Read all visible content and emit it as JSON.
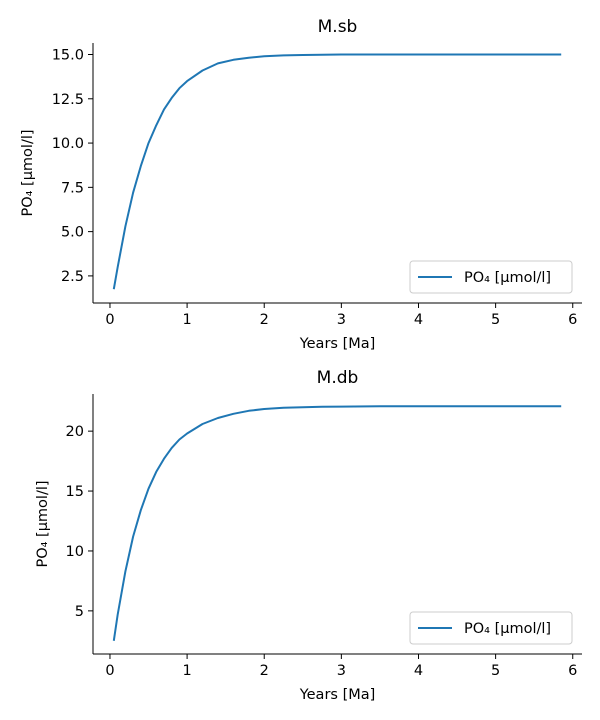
{
  "figure": {
    "line_color": "#1f77b4"
  },
  "chart_data": [
    {
      "type": "line",
      "title": "M.sb",
      "xlabel": "Years [Ma]",
      "ylabel": "PO₄ [µmol/l]",
      "legend": {
        "text": "PO₄ [µmol/l]",
        "placement": "lower-right"
      },
      "xlim": [
        -0.22,
        6.12
      ],
      "ylim": [
        0.97,
        15.65
      ],
      "xticks": [
        0,
        1,
        2,
        3,
        4,
        5,
        6
      ],
      "xtick_labels": [
        "0",
        "1",
        "2",
        "3",
        "4",
        "5",
        "6"
      ],
      "yticks": [
        2.5,
        5.0,
        7.5,
        10.0,
        12.5,
        15.0
      ],
      "ytick_labels": [
        "2.5",
        "5.0",
        "7.5",
        "10.0",
        "12.5",
        "15.0"
      ],
      "grid": false,
      "series": [
        {
          "x": [
            0.05,
            0.1,
            0.2,
            0.3,
            0.4,
            0.5,
            0.6,
            0.7,
            0.8,
            0.9,
            1.0,
            1.2,
            1.4,
            1.6,
            1.8,
            2.0,
            2.25,
            2.5,
            2.75,
            3.0,
            3.5,
            4.0,
            4.5,
            5.0,
            5.5,
            5.85
          ],
          "y": [
            1.75,
            3.0,
            5.3,
            7.2,
            8.7,
            10.0,
            11.0,
            11.9,
            12.55,
            13.1,
            13.5,
            14.1,
            14.5,
            14.7,
            14.82,
            14.9,
            14.95,
            14.97,
            14.99,
            15.0,
            15.0,
            15.0,
            15.0,
            15.0,
            15.0,
            15.0
          ]
        }
      ]
    },
    {
      "type": "line",
      "title": "M.db",
      "xlabel": "Years [Ma]",
      "ylabel": "PO₄ [µmol/l]",
      "legend": {
        "text": "PO₄ [µmol/l]",
        "placement": "lower-right"
      },
      "xlim": [
        -0.22,
        6.12
      ],
      "ylim": [
        1.4,
        23.1
      ],
      "xticks": [
        0,
        1,
        2,
        3,
        4,
        5,
        6
      ],
      "xtick_labels": [
        "0",
        "1",
        "2",
        "3",
        "4",
        "5",
        "6"
      ],
      "yticks": [
        5,
        10,
        15,
        20
      ],
      "ytick_labels": [
        "5",
        "10",
        "15",
        "20"
      ],
      "grid": false,
      "series": [
        {
          "x": [
            0.05,
            0.1,
            0.2,
            0.3,
            0.4,
            0.5,
            0.6,
            0.7,
            0.8,
            0.9,
            1.0,
            1.2,
            1.4,
            1.6,
            1.8,
            2.0,
            2.25,
            2.5,
            2.75,
            3.0,
            3.5,
            4.0,
            4.5,
            5.0,
            5.5,
            5.85
          ],
          "y": [
            2.5,
            4.7,
            8.3,
            11.2,
            13.4,
            15.2,
            16.6,
            17.7,
            18.6,
            19.3,
            19.8,
            20.6,
            21.1,
            21.45,
            21.7,
            21.85,
            21.95,
            22.0,
            22.03,
            22.05,
            22.07,
            22.08,
            22.08,
            22.08,
            22.08,
            22.08
          ]
        }
      ]
    }
  ]
}
